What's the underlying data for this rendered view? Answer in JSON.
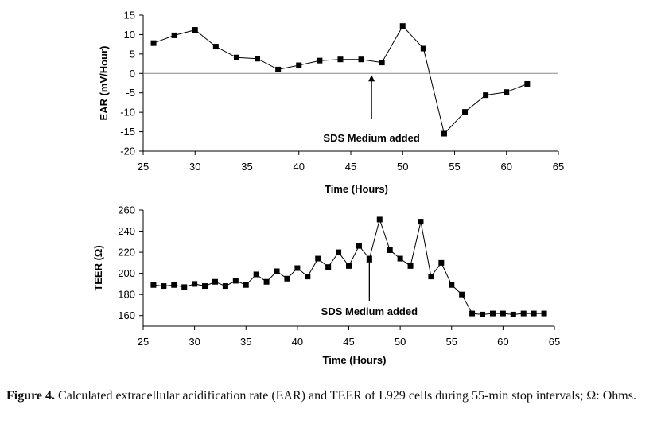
{
  "caption": {
    "label": "Figure 4.",
    "text": "Calculated extracellular acidification rate (EAR) and TEER of L929 cells during 55-min stop intervals; Ω: Ohms."
  },
  "chart_data": [
    {
      "type": "line",
      "ylabel": "EAR (mV/Hour)",
      "xlabel": "Time (Hours)",
      "xlim": [
        25,
        65
      ],
      "ylim": [
        -20,
        15
      ],
      "xticks": [
        "25",
        "30",
        "35",
        "40",
        "45",
        "50",
        "55",
        "60",
        "65"
      ],
      "yticks": [
        "15",
        "10",
        "5",
        "0",
        "-5",
        "-10",
        "-15",
        "-20"
      ],
      "zero_line": true,
      "marker": "square",
      "series": [
        {
          "x": [
            26,
            28,
            30,
            32,
            34,
            36,
            38,
            40,
            42,
            44,
            46,
            48,
            50,
            52,
            54,
            56,
            58,
            60,
            62
          ],
          "y": [
            7.8,
            9.8,
            11.2,
            6.9,
            4.1,
            3.8,
            1.0,
            2.1,
            3.3,
            3.6,
            3.6,
            2.8,
            12.2,
            6.4,
            -15.5,
            -9.9,
            -5.6,
            -4.8,
            -2.7
          ]
        }
      ],
      "annotation": {
        "text": "SDS Medium added",
        "x": 47,
        "arrow_tip_y": 0
      }
    },
    {
      "type": "line",
      "ylabel": "TEER (Ω)",
      "xlabel": "Time (Hours)",
      "xlim": [
        25,
        65
      ],
      "ylim": [
        150,
        260
      ],
      "xticks": [
        "25",
        "30",
        "35",
        "40",
        "45",
        "50",
        "55",
        "60",
        "65"
      ],
      "yticks": [
        "260",
        "240",
        "220",
        "200",
        "180",
        "160"
      ],
      "marker": "square",
      "series": [
        {
          "x": [
            26,
            27,
            28,
            29,
            30,
            31,
            32,
            33,
            34,
            35,
            36,
            37,
            38,
            39,
            40,
            41,
            42,
            43,
            44,
            45,
            46,
            47,
            48,
            49,
            50,
            51,
            52,
            53,
            54,
            55,
            56,
            57,
            58,
            59,
            60,
            61,
            62,
            63,
            64
          ],
          "y": [
            189,
            188,
            189,
            187,
            190,
            188,
            192,
            188,
            193,
            189,
            199,
            192,
            202,
            195,
            205,
            197,
            214,
            206,
            220,
            207,
            226,
            214,
            251,
            222,
            214,
            207,
            249,
            197,
            210,
            189,
            180,
            162,
            161,
            162,
            162,
            161,
            162,
            162,
            162
          ]
        }
      ],
      "annotation": {
        "text": "SDS Medium added",
        "x": 47,
        "arrow_tip_y": 218
      }
    }
  ]
}
